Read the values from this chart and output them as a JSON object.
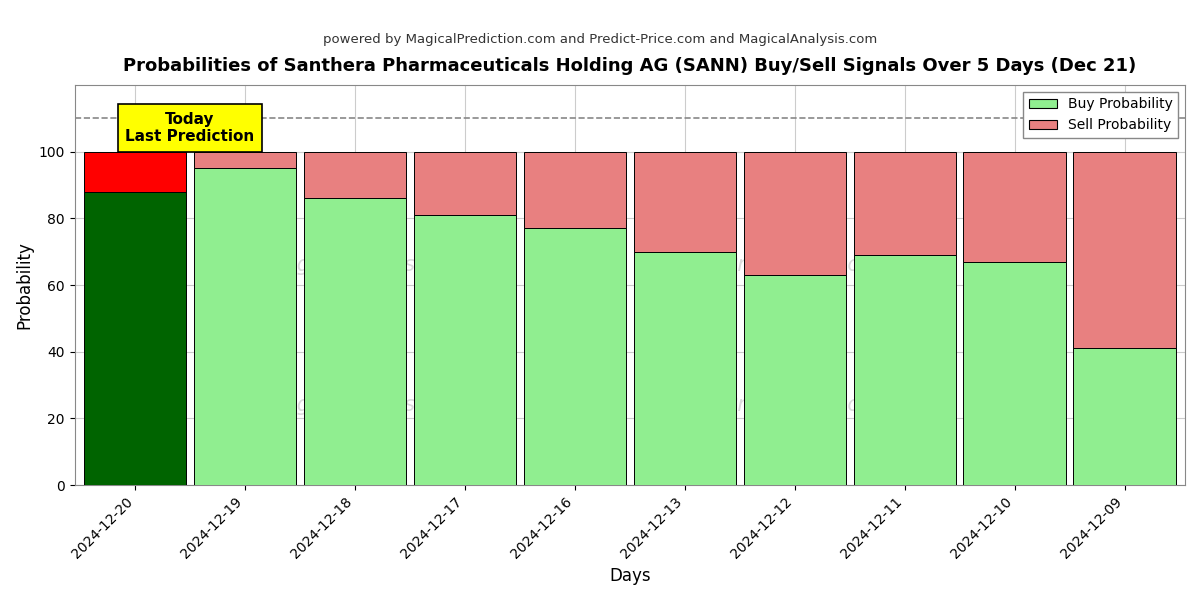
{
  "title": "Probabilities of Santhera Pharmaceuticals Holding AG (SANN) Buy/Sell Signals Over 5 Days (Dec 21)",
  "subtitle": "powered by MagicalPrediction.com and Predict-Price.com and MagicalAnalysis.com",
  "xlabel": "Days",
  "ylabel": "Probability",
  "dates": [
    "2024-12-20",
    "2024-12-19",
    "2024-12-18",
    "2024-12-17",
    "2024-12-16",
    "2024-12-13",
    "2024-12-12",
    "2024-12-11",
    "2024-12-10",
    "2024-12-09"
  ],
  "buy_values": [
    88,
    95,
    86,
    81,
    77,
    70,
    63,
    69,
    67,
    41
  ],
  "sell_values": [
    12,
    5,
    14,
    19,
    23,
    30,
    37,
    31,
    33,
    59
  ],
  "today_bar_buy_color": "#006400",
  "today_bar_sell_color": "#FF0000",
  "other_bar_buy_color": "#90EE90",
  "other_bar_sell_color": "#E88080",
  "bar_edge_color": "#000000",
  "today_label_bg": "#FFFF00",
  "today_label_text": "Today\nLast Prediction",
  "dashed_line_y": 110,
  "dashed_line_color": "#888888",
  "ylim": [
    0,
    120
  ],
  "yticks": [
    0,
    20,
    40,
    60,
    80,
    100
  ],
  "grid_color": "#cccccc",
  "watermark_texts": [
    "MagicalAnalysis.com",
    "MagicalPrediction.com"
  ],
  "legend_buy": "Buy Probability",
  "legend_sell": "Sell Probability",
  "fig_bg": "#ffffff",
  "axes_bg": "#ffffff",
  "bar_width": 0.93
}
